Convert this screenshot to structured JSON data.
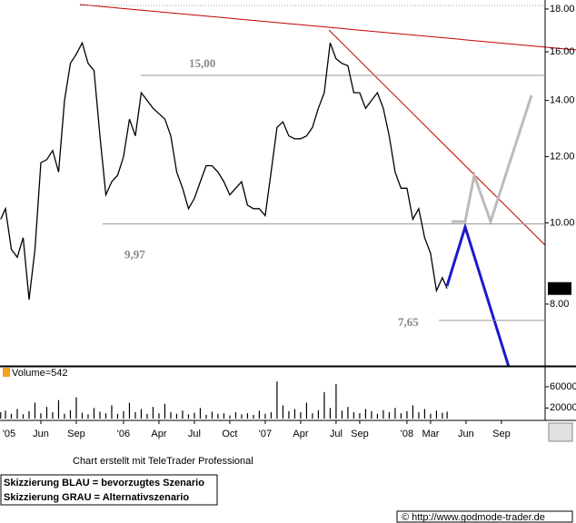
{
  "chart_data": [
    {
      "type": "line",
      "color": "#000000",
      "log_scale": true,
      "x": [
        1.6,
        2,
        2.5,
        3,
        3.5,
        4,
        4.5,
        5,
        5.5,
        6,
        6.5,
        7,
        7.5,
        8,
        8.5,
        9,
        9.5,
        10,
        10.5,
        11,
        11.5,
        12,
        12.5,
        13,
        13.5,
        14,
        14.5,
        15,
        15.5,
        16,
        16.5,
        17,
        17.5,
        18,
        18.5,
        19,
        19.5,
        20,
        20.5,
        21,
        21.5,
        22,
        22.5,
        23,
        23.5,
        24,
        24.5,
        25,
        25.5,
        26,
        26.5,
        27,
        27.5,
        28,
        28.5,
        29,
        29.5,
        30,
        30.5,
        31,
        31.5,
        32,
        32.5,
        33,
        33.5,
        34,
        34.5,
        35,
        35.5,
        36,
        36.5,
        37,
        37.5,
        38,
        38.5,
        39,
        39.4
      ],
      "values": [
        10.1,
        10.4,
        9.3,
        9.1,
        9.6,
        8.1,
        9.3,
        11.8,
        11.9,
        12.2,
        11.5,
        14.0,
        15.5,
        15.9,
        16.4,
        15.5,
        15.2,
        12.7,
        10.8,
        11.2,
        11.4,
        12.0,
        13.3,
        12.7,
        14.3,
        14.0,
        13.7,
        13.5,
        13.3,
        12.7,
        11.5,
        11.0,
        10.4,
        10.7,
        11.2,
        11.7,
        11.7,
        11.5,
        11.2,
        10.8,
        11.0,
        11.2,
        10.5,
        10.4,
        10.4,
        10.2,
        11.5,
        13.0,
        13.2,
        12.7,
        12.6,
        12.6,
        12.7,
        13.0,
        13.7,
        14.3,
        16.4,
        15.7,
        15.5,
        15.4,
        14.3,
        14.3,
        13.7,
        14.0,
        14.3,
        13.7,
        12.7,
        11.5,
        11.0,
        11.0,
        10.1,
        10.4,
        9.6,
        9.2,
        8.3,
        8.6,
        8.35
      ],
      "xlim": [
        1.54,
        47.7
      ],
      "xticks": [
        {
          "value": 0,
          "label": "'05"
        },
        {
          "value": 5,
          "label": "Jun"
        },
        {
          "value": 8,
          "label": "Sep"
        },
        {
          "value": 12,
          "label": "'06"
        },
        {
          "value": 15,
          "label": "Apr"
        },
        {
          "value": 18,
          "label": "Jul"
        },
        {
          "value": 21,
          "label": "Oct"
        },
        {
          "value": 24,
          "label": "'07"
        },
        {
          "value": 27,
          "label": "Apr"
        },
        {
          "value": 30,
          "label": "Jul"
        },
        {
          "value": 32,
          "label": "Sep"
        },
        {
          "value": 36,
          "label": "'08"
        },
        {
          "value": 38,
          "label": "Mar"
        },
        {
          "value": 41,
          "label": "Jun"
        },
        {
          "value": 44,
          "label": "Sep"
        }
      ],
      "ylim": [
        6.75,
        18.45
      ],
      "yticks": [
        {
          "value": 8,
          "label": "8.00"
        },
        {
          "value": 10,
          "label": "10.00"
        },
        {
          "value": 12,
          "label": "12.00"
        },
        {
          "value": 14,
          "label": "14.00"
        },
        {
          "value": 16,
          "label": "16.00"
        },
        {
          "value": 18,
          "label": "18.00"
        }
      ],
      "last_price": {
        "value": 8.35,
        "label": "8.35"
      },
      "annotations": [
        {
          "value": 15.0,
          "label": "15,00"
        },
        {
          "value": 9.97,
          "label": "9,97"
        },
        {
          "value": 7.65,
          "label": "7,65"
        }
      ]
    },
    {
      "type": "bar",
      "title": "Volume=542",
      "color": "#000000",
      "values": [
        12000,
        15000,
        9000,
        18000,
        8000,
        14000,
        30000,
        10000,
        22000,
        12000,
        35000,
        9000,
        16000,
        40000,
        11000,
        8000,
        20000,
        13000,
        10000,
        25000,
        9000,
        14000,
        30000,
        12000,
        18000,
        9000,
        22000,
        10000,
        28000,
        12000,
        9000,
        15000,
        8000,
        11000,
        20000,
        7000,
        13000,
        9000,
        10000,
        6000,
        12000,
        8000,
        10000,
        7000,
        15000,
        9000,
        12000,
        70000,
        25000,
        14000,
        18000,
        12000,
        30000,
        10000,
        16000,
        50000,
        20000,
        65000,
        15000,
        22000,
        12000,
        10000,
        18000,
        14000,
        9000,
        16000,
        12000,
        20000,
        10000,
        14000,
        25000,
        12000,
        18000,
        9000,
        15000,
        11000,
        13000
      ],
      "ylim": [
        0,
        96000
      ],
      "yticks": [
        20000,
        60000
      ]
    }
  ],
  "credit": "Chart erstellt mit TeleTrader Professional",
  "legend_lines": [
    "Skizzierung BLAU = bevorzugtes Szenario",
    "Skizzierung GRAU = Alternativszenario"
  ],
  "copyright": "© http://www.godmode-trader.de"
}
